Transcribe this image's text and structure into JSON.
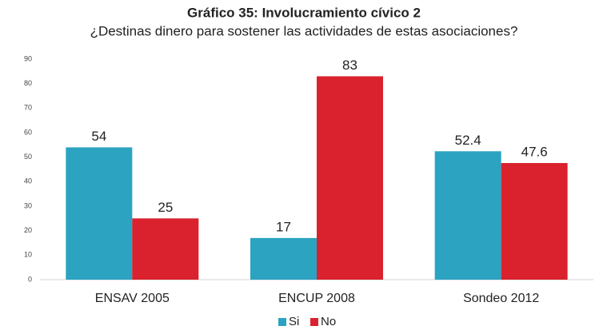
{
  "chart_data": {
    "type": "bar",
    "title": "Gráfico 35: Involucramiento cívico 2",
    "subtitle": "¿Destinas dinero para sostener las actividades de estas asociaciones?",
    "categories": [
      "ENSAV 2005",
      "ENCUP 2008",
      "Sondeo 2012"
    ],
    "series": [
      {
        "name": "Si",
        "color": "#2ba3c1",
        "values": [
          54,
          17,
          52.4
        ]
      },
      {
        "name": "No",
        "color": "#d9222d",
        "values": [
          25,
          83,
          47.6
        ]
      }
    ],
    "ylim": [
      0,
      90
    ],
    "yticks": [
      0,
      10,
      20,
      30,
      40,
      50,
      60,
      70,
      80,
      90
    ],
    "grid": false,
    "legend": "bottom"
  }
}
